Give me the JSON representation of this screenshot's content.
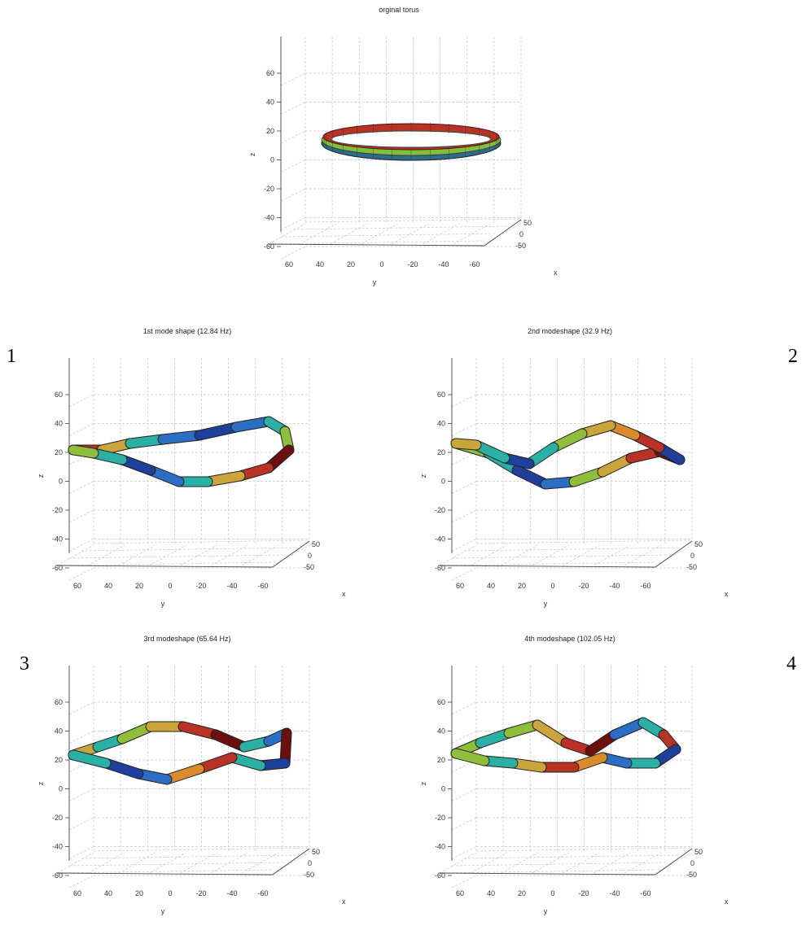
{
  "figure": {
    "panel_numbers": [
      "1",
      "2",
      "3",
      "4"
    ]
  },
  "chart_data": [
    {
      "type": "3d-surface",
      "title": "orginal torus",
      "shape": "ring",
      "xlabel": "x",
      "ylabel": "y",
      "zlabel": "z",
      "z_ticks": [
        "60",
        "40",
        "20",
        "0",
        "-20",
        "-40",
        "-60"
      ],
      "y_ticks": [
        "60",
        "40",
        "20",
        "0",
        "-20",
        "-40",
        "-60"
      ],
      "x_ticks": [
        "50",
        "0",
        "-50"
      ],
      "zlim": [
        -70,
        70
      ],
      "colormap": [
        "#7a1010",
        "#c0392b",
        "#e0a030",
        "#7fbf3f",
        "#2fb3a8",
        "#2060c0"
      ],
      "grid": true
    },
    {
      "type": "3d-surface",
      "title": "1st mode shape (12.84 Hz)",
      "mode": 1,
      "frequency_hz": 12.84,
      "xlabel": "x",
      "ylabel": "y",
      "zlabel": "z",
      "z_ticks": [
        "60",
        "40",
        "20",
        "0",
        "-20",
        "-40",
        "-60"
      ],
      "y_ticks": [
        "60",
        "40",
        "20",
        "0",
        "-20",
        "-40",
        "-60"
      ],
      "x_ticks": [
        "50",
        "0",
        "-50"
      ],
      "zlim": [
        -70,
        70
      ],
      "grid": true
    },
    {
      "type": "3d-surface",
      "title": "2nd modeshape (32.9 Hz)",
      "mode": 2,
      "frequency_hz": 32.9,
      "xlabel": "x",
      "ylabel": "y",
      "zlabel": "z",
      "z_ticks": [
        "60",
        "40",
        "20",
        "0",
        "-20",
        "-40",
        "-60"
      ],
      "y_ticks": [
        "60",
        "40",
        "20",
        "0",
        "-20",
        "-40",
        "-60"
      ],
      "x_ticks": [
        "50",
        "0",
        "-50"
      ],
      "zlim": [
        -70,
        70
      ],
      "grid": true
    },
    {
      "type": "3d-surface",
      "title": "3rd modeshape (65.64 Hz)",
      "mode": 3,
      "frequency_hz": 65.64,
      "xlabel": "x",
      "ylabel": "y",
      "zlabel": "z",
      "z_ticks": [
        "60",
        "40",
        "20",
        "0",
        "-20",
        "-40",
        "-60"
      ],
      "y_ticks": [
        "60",
        "40",
        "20",
        "0",
        "-20",
        "-40",
        "-60"
      ],
      "x_ticks": [
        "50",
        "0",
        "-50"
      ],
      "zlim": [
        -70,
        70
      ],
      "grid": true
    },
    {
      "type": "3d-surface",
      "title": "4th modeshape (102.05 Hz)",
      "mode": 4,
      "frequency_hz": 102.05,
      "xlabel": "x",
      "ylabel": "y",
      "zlabel": "z",
      "z_ticks": [
        "60",
        "40",
        "20",
        "0",
        "-20",
        "-40",
        "-60"
      ],
      "y_ticks": [
        "60",
        "40",
        "20",
        "0",
        "-20",
        "-40",
        "-60"
      ],
      "x_ticks": [
        "50",
        "0",
        "-50"
      ],
      "zlim": [
        -70,
        70
      ],
      "grid": true
    }
  ]
}
